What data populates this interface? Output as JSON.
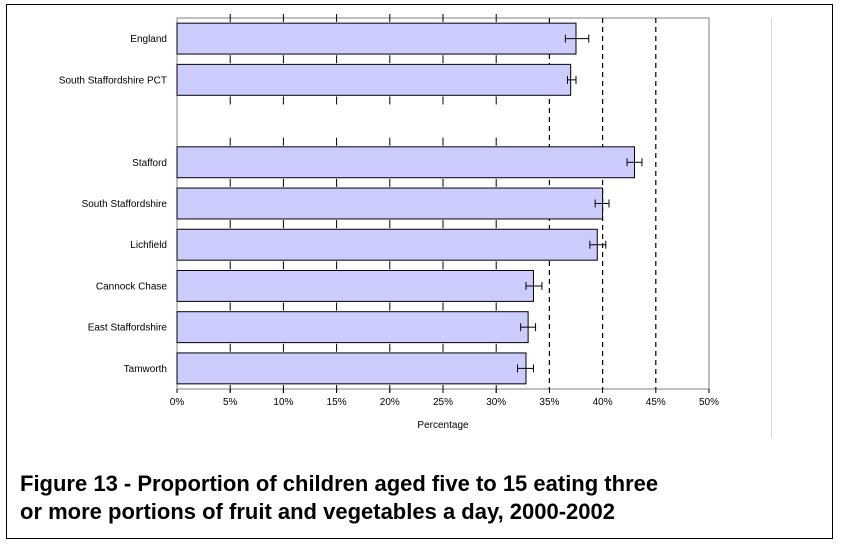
{
  "caption": {
    "line1": "Figure 13 - Proportion of children aged five to 15 eating three",
    "line2": "or more portions of fruit and vegetables a day, 2000-2002"
  },
  "colors": {
    "bar_fill": "#ccccff",
    "bar_stroke": "#000000",
    "grid": "#000000",
    "plot_border": "#808080"
  },
  "chart_data": {
    "type": "bar",
    "orientation": "horizontal",
    "title": "",
    "xlabel": "Percentage",
    "ylabel": "",
    "xlim": [
      0,
      50
    ],
    "xticks": [
      0,
      5,
      10,
      15,
      20,
      25,
      30,
      35,
      40,
      45,
      50
    ],
    "xtick_labels": [
      "0%",
      "5%",
      "10%",
      "15%",
      "20%",
      "25%",
      "30%",
      "35%",
      "40%",
      "45%",
      "50%"
    ],
    "grid": "dashed vertical lines at 35%, 40%, 45%",
    "categories": [
      "England",
      "South Staffordshire PCT",
      "",
      "Stafford",
      "South Staffordshire",
      "Lichfield",
      "Cannock Chase",
      "East Staffordshire",
      "Tamworth"
    ],
    "values": [
      37.5,
      37.0,
      null,
      43.0,
      40.0,
      39.5,
      33.5,
      33.0,
      32.8
    ],
    "error_low": [
      36.5,
      36.7,
      null,
      42.3,
      39.3,
      38.8,
      32.8,
      32.3,
      32.0
    ],
    "error_high": [
      38.7,
      37.5,
      null,
      43.7,
      40.6,
      40.3,
      34.3,
      33.7,
      33.5
    ]
  }
}
